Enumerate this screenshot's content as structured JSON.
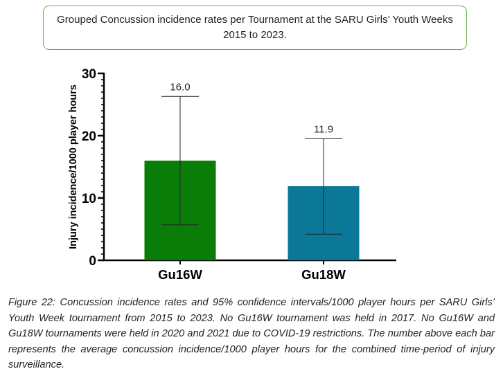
{
  "header": {
    "title_line1": "Grouped Concussion incidence rates per Tournament at the SARU Girls’ Youth Weeks",
    "title_line2": "2015 to 2023."
  },
  "chart_data": {
    "type": "bar",
    "categories": [
      "Gu16W",
      "Gu18W"
    ],
    "values": [
      16.0,
      11.9
    ],
    "value_labels": [
      "16.0",
      "11.9"
    ],
    "error_bars": [
      {
        "low": 5.7,
        "high": 26.3
      },
      {
        "low": 4.2,
        "high": 19.5
      }
    ],
    "colors": [
      "#0a7d08",
      "#0a7896"
    ],
    "ylabel": "Injury incidence/1000 player hours",
    "xlabel": "",
    "ylim": [
      0,
      30
    ],
    "yticks": [
      0,
      10,
      20,
      30
    ],
    "minor_ticks_per_major": 10
  },
  "caption": {
    "text": "Figure 22: Concussion incidence rates and 95% confidence intervals/1000 player hours per SARU Girls’ Youth Week tournament from 2015 to 2023. No Gu16W tournament was held in 2017. No Gu16W and Gu18W tournaments were held in 2020 and 2021 due to COVID-19 restrictions. The number above each bar represents the average concussion incidence/1000 player hours for the combined time-period of injury surveillance."
  }
}
